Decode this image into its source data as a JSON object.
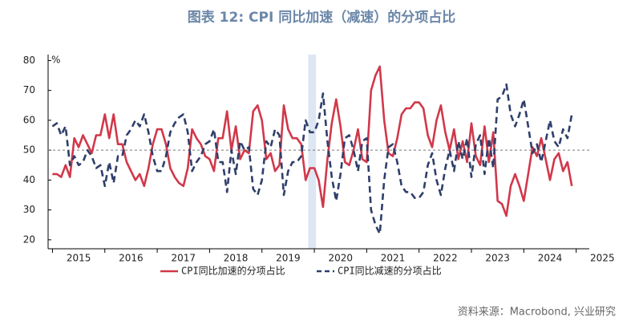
{
  "chart_data": {
    "type": "line",
    "title": "图表 12: CPI 同比加速（减速）的分项占比",
    "y_unit": "%",
    "source": "资料来源：Macrobond, 兴业研究",
    "x": [
      0,
      1,
      2,
      3,
      4,
      5,
      6,
      7,
      8,
      9,
      10,
      11,
      12,
      13,
      14,
      15,
      16,
      17,
      18,
      19,
      20,
      21,
      22,
      23,
      24,
      25,
      26,
      27,
      28,
      29,
      30,
      31,
      32,
      33,
      34,
      35,
      36,
      37,
      38,
      39,
      40,
      41,
      42,
      43,
      44,
      45,
      46,
      47,
      48,
      49,
      50,
      51,
      52,
      53,
      54,
      55,
      56,
      57,
      58,
      59,
      60,
      61,
      62,
      63,
      64,
      65,
      66,
      67,
      68,
      69,
      70,
      71,
      72,
      73,
      74,
      75,
      76,
      77,
      78,
      79,
      80,
      81,
      82,
      83,
      84,
      85,
      86,
      87,
      88,
      89,
      90,
      91,
      92,
      93,
      94,
      95,
      96,
      97,
      98,
      99,
      100,
      101,
      102,
      103,
      104,
      105,
      106,
      107,
      108,
      109,
      110,
      111,
      112,
      113,
      114,
      115,
      116,
      117,
      118,
      119
    ],
    "xlim": [
      -1,
      123
    ],
    "xticks": [
      {
        "value": 0,
        "label": "2015"
      },
      {
        "value": 12,
        "label": "2016"
      },
      {
        "value": 24,
        "label": "2017"
      },
      {
        "value": 36,
        "label": "2018"
      },
      {
        "value": 48,
        "label": "2019"
      },
      {
        "value": 60,
        "label": "2020"
      },
      {
        "value": 72,
        "label": "2021"
      },
      {
        "value": 84,
        "label": "2022"
      },
      {
        "value": 96,
        "label": "2023"
      },
      {
        "value": 108,
        "label": "2024"
      },
      {
        "value": 120,
        "label": "2025"
      }
    ],
    "ylim": [
      17,
      82
    ],
    "yticks": [
      20,
      30,
      40,
      50,
      60,
      70,
      80
    ],
    "reference_line": 50,
    "series": [
      {
        "name": "CPI同比加速的分项占比",
        "color": "#d1384a",
        "dash": false,
        "values": [
          42,
          42,
          41,
          45,
          41,
          54,
          51,
          55,
          52,
          49,
          55,
          55,
          62,
          54,
          62,
          52,
          52,
          46,
          43,
          40,
          42,
          38,
          44,
          52,
          57,
          57,
          52,
          44,
          41,
          39,
          38,
          44,
          57,
          54,
          52,
          48,
          47,
          43,
          54,
          54,
          63,
          50,
          58,
          47,
          50,
          49,
          63,
          65,
          60,
          47,
          49,
          43,
          45,
          65,
          57,
          54,
          54,
          52,
          40,
          44,
          44,
          40,
          31,
          47,
          59,
          67,
          58,
          46,
          45,
          50,
          57,
          47,
          46,
          70,
          75,
          78,
          60,
          49,
          48,
          54,
          62,
          64,
          64,
          66,
          66,
          64,
          55,
          51,
          60,
          65,
          56,
          50,
          57,
          47,
          53,
          46,
          59,
          48,
          45,
          58,
          46,
          56,
          33,
          32,
          28,
          38,
          42,
          38,
          33,
          42,
          51,
          48,
          54,
          47,
          40,
          47,
          49,
          43,
          46,
          38
        ]
      },
      {
        "name": "CPI同比减速的分项占比",
        "color": "#2f3f6b",
        "dash": true,
        "values": [
          58,
          59,
          55,
          58,
          45,
          48,
          45,
          46,
          50,
          48,
          44,
          45,
          38,
          46,
          39,
          48,
          48,
          55,
          57,
          60,
          58,
          62,
          56,
          48,
          43,
          43,
          48,
          56,
          59,
          61,
          62,
          56,
          43,
          46,
          48,
          52,
          53,
          57,
          46,
          46,
          36,
          50,
          42,
          53,
          50,
          51,
          37,
          35,
          40,
          53,
          51,
          57,
          55,
          35,
          43,
          46,
          46,
          48,
          60,
          56,
          56,
          60,
          69,
          53,
          41,
          33,
          42,
          54,
          55,
          50,
          43,
          53,
          54,
          30,
          25,
          22,
          40,
          51,
          52,
          46,
          38,
          36,
          36,
          34,
          34,
          36,
          45,
          49,
          40,
          35,
          44,
          50,
          43,
          53,
          47,
          54,
          41,
          52,
          55,
          42,
          54,
          44,
          67,
          68,
          72,
          62,
          58,
          62,
          67,
          58,
          49,
          52,
          46,
          53,
          60,
          53,
          51,
          57,
          54,
          62
        ]
      }
    ]
  }
}
